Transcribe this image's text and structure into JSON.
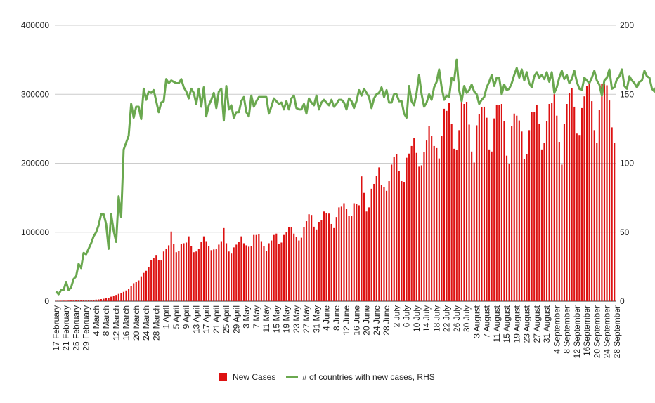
{
  "chart_data": {
    "type": "bar",
    "left_axis": {
      "ticks": [
        0,
        100000,
        200000,
        300000,
        400000
      ],
      "tick_labels": [
        "0",
        "100000",
        "200000",
        "300000",
        "400000"
      ],
      "ylim": [
        0,
        400000
      ]
    },
    "right_axis": {
      "ticks": [
        0,
        50,
        100,
        150,
        200
      ],
      "tick_labels": [
        "0",
        "50",
        "100",
        "150",
        "200"
      ],
      "ylim": [
        0,
        200
      ]
    },
    "x_start_date": "2020-02-17",
    "x_labels": [
      "17 February",
      "21 February",
      "25 February",
      "29 February",
      "4 March",
      "8 March",
      "12 March",
      "16 March",
      "20 March",
      "24 March",
      "28 March",
      "1 April",
      "5 April",
      "9 April",
      "13 April",
      "17 April",
      "21 April",
      "25 April",
      "29 April",
      "3 May",
      "7 May",
      "11 May",
      "15 May",
      "19 May",
      "23 May",
      "27 May",
      "31 May",
      "4 June",
      "8 June",
      "12 June",
      "16 June",
      "20 June",
      "24 June",
      "28 June",
      "2 July",
      "6 July",
      "10 July",
      "14 July",
      "18 July",
      "22 July",
      "26 July",
      "30 July",
      "3 August",
      "7 August",
      "11 August",
      "15 August",
      "19 August",
      "23 August",
      "27 August",
      "31 August",
      "4 September",
      "8 September",
      "12 September",
      "16September",
      "20 September",
      "24 September",
      "28 September"
    ],
    "series": [
      {
        "name": "New Cases",
        "axis": "left",
        "type": "bar",
        "color": "#dd1111",
        "values": [
          500,
          400,
          600,
          700,
          600,
          800,
          900,
          900,
          1000,
          1100,
          1200,
          1300,
          1500,
          1600,
          1800,
          2000,
          2300,
          2600,
          3000,
          3500,
          4200,
          5000,
          6500,
          7500,
          9000,
          10500,
          12000,
          13500,
          15500,
          18000,
          22000,
          26000,
          28000,
          30000,
          36000,
          41000,
          44000,
          49000,
          60000,
          63000,
          67000,
          60000,
          59000,
          72000,
          76000,
          81000,
          101000,
          83000,
          71000,
          73000,
          83000,
          84000,
          85000,
          94000,
          80000,
          71000,
          72000,
          76000,
          86000,
          94000,
          87000,
          80000,
          74000,
          75000,
          76000,
          82000,
          87000,
          106000,
          84000,
          72000,
          69000,
          78000,
          82000,
          86000,
          94000,
          84000,
          81000,
          79000,
          80000,
          96000,
          96000,
          97000,
          87000,
          80000,
          73000,
          84000,
          88000,
          96000,
          98000,
          83000,
          85000,
          96000,
          100000,
          107000,
          107000,
          98000,
          93000,
          88000,
          92000,
          107000,
          116000,
          126000,
          125000,
          108000,
          104000,
          115000,
          118000,
          130000,
          128000,
          127000,
          112000,
          106000,
          122000,
          136000,
          137000,
          142000,
          134000,
          124000,
          124000,
          142000,
          141000,
          139000,
          181000,
          157000,
          130000,
          136000,
          163000,
          170000,
          182000,
          194000,
          168000,
          165000,
          160000,
          174000,
          198000,
          209000,
          213000,
          189000,
          174000,
          173000,
          208000,
          214000,
          225000,
          237000,
          215000,
          195000,
          197000,
          216000,
          233000,
          254000,
          240000,
          225000,
          222000,
          207000,
          240000,
          279000,
          276000,
          288000,
          257000,
          221000,
          219000,
          248000,
          289000,
          286000,
          289000,
          256000,
          217000,
          201000,
          255000,
          271000,
          281000,
          282000,
          266000,
          220000,
          217000,
          265000,
          285000,
          284000,
          286000,
          261000,
          211000,
          199000,
          254000,
          272000,
          269000,
          262000,
          246000,
          206000,
          213000,
          248000,
          274000,
          274000,
          285000,
          257000,
          220000,
          230000,
          261000,
          286000,
          287000,
          300000,
          269000,
          231000,
          198000,
          257000,
          286000,
          302000,
          309000,
          282000,
          243000,
          241000,
          280000,
          297000,
          312000,
          315000,
          290000,
          248000,
          229000,
          277000,
          315000,
          315000,
          313000,
          291000,
          252000,
          230000
        ]
      },
      {
        "name": "# of countries with new cases, RHS",
        "axis": "right",
        "type": "line",
        "color": "#6aa84f",
        "values": [
          7,
          5,
          8,
          8,
          14,
          8,
          10,
          16,
          18,
          27,
          24,
          35,
          34,
          38,
          42,
          47,
          50,
          55,
          63,
          63,
          56,
          38,
          63,
          51,
          43,
          76,
          61,
          110,
          115,
          120,
          143,
          133,
          141,
          141,
          132,
          154,
          146,
          152,
          151,
          153,
          145,
          137,
          144,
          145,
          161,
          158,
          160,
          159,
          158,
          158,
          161,
          155,
          152,
          147,
          154,
          151,
          143,
          154,
          141,
          155,
          134,
          142,
          146,
          151,
          140,
          152,
          154,
          131,
          156,
          139,
          142,
          133,
          137,
          137,
          145,
          148,
          137,
          134,
          149,
          141,
          145,
          148,
          148,
          148,
          148,
          136,
          141,
          147,
          145,
          143,
          144,
          139,
          145,
          139,
          147,
          149,
          140,
          139,
          139,
          143,
          136,
          147,
          144,
          142,
          149,
          139,
          144,
          146,
          144,
          142,
          146,
          141,
          143,
          146,
          146,
          144,
          139,
          147,
          145,
          140,
          145,
          153,
          149,
          154,
          151,
          148,
          140,
          147,
          150,
          151,
          155,
          148,
          153,
          144,
          144,
          150,
          150,
          145,
          145,
          136,
          133,
          156,
          145,
          142,
          151,
          164,
          150,
          141,
          144,
          150,
          146,
          155,
          159,
          168,
          155,
          146,
          149,
          148,
          162,
          160,
          175,
          153,
          145,
          156,
          151,
          153,
          157,
          152,
          150,
          143,
          146,
          148,
          155,
          159,
          164,
          156,
          162,
          162,
          150,
          157,
          153,
          154,
          158,
          164,
          169,
          162,
          168,
          160,
          166,
          158,
          155,
          163,
          166,
          162,
          164,
          161,
          166,
          159,
          166,
          151,
          155,
          162,
          167,
          161,
          164,
          158,
          161,
          167,
          159,
          154,
          153,
          162,
          160,
          158,
          162,
          167,
          160,
          157,
          149,
          160,
          162,
          168,
          154,
          155,
          161,
          163,
          168,
          156,
          154,
          163,
          160,
          158,
          155,
          159,
          160,
          167,
          163,
          162,
          154,
          152,
          157,
          152
        ]
      }
    ],
    "legend": {
      "placement": "bottom",
      "entries": [
        "New Cases",
        "# of countries with new cases, RHS"
      ]
    },
    "grid": true
  }
}
